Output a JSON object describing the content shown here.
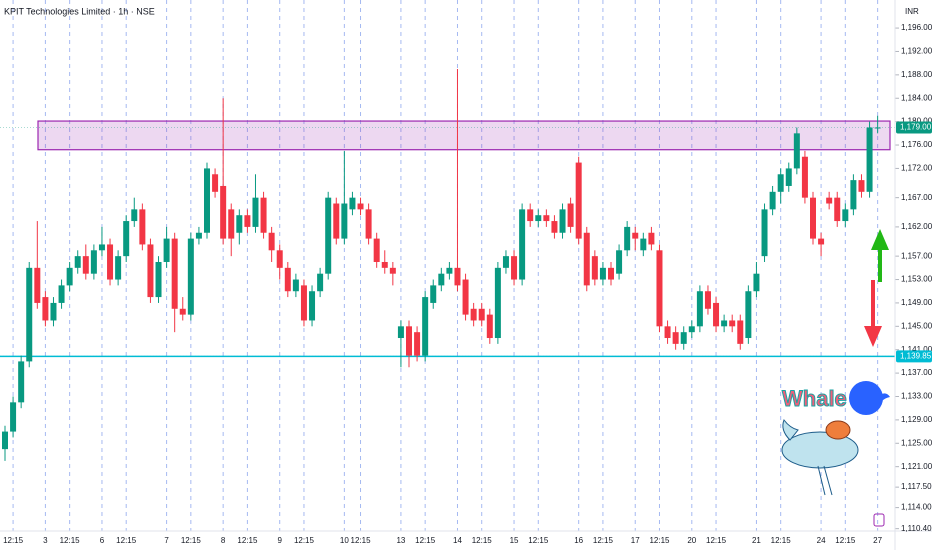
{
  "chart_data": {
    "type": "candlestick",
    "title": "KPIT Technologies Limited · 1h · NSE",
    "axis_unit": "INR",
    "up_color": "#089981",
    "down_color": "#f23645",
    "categories": [
      null,
      "12:15",
      null,
      null,
      null,
      "3",
      null,
      null,
      "12:15",
      null,
      null,
      null,
      "6",
      null,
      null,
      "12:15",
      null,
      null,
      null,
      null,
      "7",
      null,
      null,
      "12:15",
      null,
      null,
      null,
      "8",
      null,
      null,
      "12:15",
      null,
      null,
      null,
      "9",
      null,
      null,
      "12:15",
      null,
      null,
      null,
      null,
      "10",
      null,
      "12:15",
      null,
      null,
      null,
      null,
      "13",
      null,
      null,
      "12:15",
      null,
      null,
      null,
      "14",
      null,
      null,
      "12:15",
      null,
      null,
      null,
      "15",
      null,
      null,
      "12:15",
      null,
      null,
      null,
      null,
      "16",
      null,
      null,
      "12:15",
      null,
      null,
      null,
      "17",
      null,
      null,
      "12:15",
      null,
      null,
      null,
      "20",
      null,
      null,
      "12:15",
      null,
      null,
      null,
      null,
      "21",
      null,
      null,
      "12:15",
      null,
      null,
      null,
      null,
      "24",
      null,
      null,
      "12:15",
      null,
      null,
      null,
      "27"
    ],
    "ohlc": [
      [
        1124,
        1128,
        1122,
        1127
      ],
      [
        1127,
        1133,
        1126,
        1132
      ],
      [
        1132,
        1140,
        1131,
        1139
      ],
      [
        1139,
        1156,
        1138,
        1155
      ],
      [
        1155,
        1163,
        1148,
        1149
      ],
      [
        1150,
        1151,
        1145,
        1146
      ],
      [
        1146,
        1150,
        1145,
        1149
      ],
      [
        1149,
        1153,
        1148,
        1152
      ],
      [
        1152,
        1156,
        1151,
        1155
      ],
      [
        1155,
        1158,
        1154,
        1157
      ],
      [
        1157,
        1159,
        1153,
        1154
      ],
      [
        1154,
        1159,
        1153,
        1158
      ],
      [
        1158,
        1162,
        1157,
        1159
      ],
      [
        1159,
        1160,
        1152,
        1153
      ],
      [
        1153,
        1158,
        1152,
        1157
      ],
      [
        1157,
        1164,
        1156,
        1163
      ],
      [
        1163,
        1167,
        1162,
        1165
      ],
      [
        1165,
        1166,
        1158,
        1159
      ],
      [
        1159,
        1160,
        1149,
        1150
      ],
      [
        1150,
        1157,
        1149,
        1156
      ],
      [
        1156,
        1162,
        1155,
        1160
      ],
      [
        1160,
        1161,
        1144,
        1148
      ],
      [
        1148,
        1150,
        1146,
        1147
      ],
      [
        1147,
        1161,
        1146,
        1160
      ],
      [
        1160,
        1162,
        1159,
        1161
      ],
      [
        1161,
        1173,
        1160,
        1172
      ],
      [
        1171,
        1172,
        1167,
        1168
      ],
      [
        1169,
        1184,
        1159,
        1160
      ],
      [
        1165,
        1166,
        1157,
        1160
      ],
      [
        1161,
        1165,
        1159,
        1164
      ],
      [
        1164,
        1165,
        1161,
        1162
      ],
      [
        1162,
        1171,
        1161,
        1167
      ],
      [
        1167,
        1168,
        1160,
        1161
      ],
      [
        1161,
        1162,
        1156,
        1158
      ],
      [
        1158,
        1159,
        1153,
        1155
      ],
      [
        1155,
        1156,
        1150,
        1151
      ],
      [
        1151,
        1154,
        1150,
        1153
      ],
      [
        1152,
        1153,
        1145,
        1146
      ],
      [
        1146,
        1152,
        1145,
        1151
      ],
      [
        1151,
        1155,
        1150,
        1154
      ],
      [
        1154,
        1168,
        1153,
        1167
      ],
      [
        1166,
        1167,
        1159,
        1160
      ],
      [
        1160,
        1175,
        1159,
        1166
      ],
      [
        1165,
        1168,
        1164,
        1167
      ],
      [
        1166,
        1167,
        1164,
        1165
      ],
      [
        1165,
        1166,
        1159,
        1160
      ],
      [
        1160,
        1161,
        1155,
        1156
      ],
      [
        1156,
        1158,
        1154,
        1155
      ],
      [
        1155,
        1156,
        1152,
        1154
      ],
      [
        1143,
        1146,
        1138,
        1145
      ],
      [
        1145,
        1146,
        1138,
        1140
      ],
      [
        1144,
        1145,
        1139,
        1140
      ],
      [
        1140,
        1151,
        1139,
        1150
      ],
      [
        1149,
        1153,
        1148,
        1152
      ],
      [
        1152,
        1155,
        1151,
        1154
      ],
      [
        1154,
        1156,
        1153,
        1155
      ],
      [
        1155,
        1189,
        1151,
        1152
      ],
      [
        1153,
        1154,
        1146,
        1147
      ],
      [
        1148,
        1149,
        1145,
        1146
      ],
      [
        1148,
        1149,
        1145,
        1146
      ],
      [
        1147,
        1148,
        1142,
        1143
      ],
      [
        1143,
        1156,
        1142,
        1155
      ],
      [
        1155,
        1158,
        1154,
        1157
      ],
      [
        1157,
        1158,
        1152,
        1153
      ],
      [
        1153,
        1166,
        1152,
        1165
      ],
      [
        1165,
        1166,
        1162,
        1163
      ],
      [
        1163,
        1165,
        1162,
        1164
      ],
      [
        1164,
        1165,
        1162,
        1163
      ],
      [
        1163,
        1164,
        1160,
        1161
      ],
      [
        1161,
        1166,
        1160,
        1165
      ],
      [
        1166,
        1167,
        1161,
        1162
      ],
      [
        1173,
        1174,
        1159,
        1160
      ],
      [
        1161,
        1162,
        1151,
        1152
      ],
      [
        1157,
        1158,
        1152,
        1153
      ],
      [
        1153,
        1156,
        1152,
        1155
      ],
      [
        1155,
        1156,
        1152,
        1153
      ],
      [
        1154,
        1159,
        1153,
        1158
      ],
      [
        1158,
        1163,
        1157,
        1162
      ],
      [
        1161,
        1162,
        1158,
        1160
      ],
      [
        1158,
        1161,
        1157,
        1160
      ],
      [
        1161,
        1162,
        1158,
        1159
      ],
      [
        1158,
        1159,
        1144,
        1145
      ],
      [
        1145,
        1146,
        1142,
        1143
      ],
      [
        1144,
        1145,
        1141,
        1142
      ],
      [
        1142,
        1145,
        1141,
        1144
      ],
      [
        1144,
        1146,
        1143,
        1145
      ],
      [
        1145,
        1152,
        1144,
        1151
      ],
      [
        1151,
        1152,
        1147,
        1148
      ],
      [
        1149,
        1150,
        1144,
        1145
      ],
      [
        1145,
        1147,
        1144,
        1146
      ],
      [
        1146,
        1147,
        1144,
        1145
      ],
      [
        1146,
        1147,
        1141,
        1142
      ],
      [
        1143,
        1152,
        1142,
        1151
      ],
      [
        1151,
        1156,
        1150,
        1154
      ],
      [
        1157,
        1166,
        1156,
        1165
      ],
      [
        1165,
        1169,
        1164,
        1168
      ],
      [
        1168,
        1172,
        1166,
        1171
      ],
      [
        1169,
        1173,
        1168,
        1172
      ],
      [
        1172,
        1179,
        1171,
        1178
      ],
      [
        1174,
        1175,
        1166,
        1167
      ],
      [
        1167,
        1168,
        1159,
        1160
      ],
      [
        1160,
        1161,
        1157,
        1159
      ],
      [
        1167,
        1168,
        1165,
        1166
      ],
      [
        1167,
        1168,
        1162,
        1163
      ],
      [
        1163,
        1166,
        1162,
        1165
      ],
      [
        1165,
        1171,
        1164,
        1170
      ],
      [
        1170,
        1171,
        1167,
        1168
      ],
      [
        1168,
        1180,
        1167,
        1179
      ],
      [
        1179,
        1181,
        1178,
        1179
      ]
    ],
    "ylim": [
      1110.0,
      1200.8
    ],
    "yticks": [
      {
        "value": 1196,
        "label": "1,196.00"
      },
      {
        "value": 1192,
        "label": "1,192.00"
      },
      {
        "value": 1188,
        "label": "1,188.00"
      },
      {
        "value": 1184,
        "label": "1,184.00"
      },
      {
        "value": 1180,
        "label": "1,180.00"
      },
      {
        "value": 1176,
        "label": "1,176.00"
      },
      {
        "value": 1172,
        "label": "1,172.00"
      },
      {
        "value": 1167,
        "label": "1,167.00"
      },
      {
        "value": 1162,
        "label": "1,162.00"
      },
      {
        "value": 1157,
        "label": "1,157.00"
      },
      {
        "value": 1153,
        "label": "1,153.00"
      },
      {
        "value": 1149,
        "label": "1,149.00"
      },
      {
        "value": 1145,
        "label": "1,145.00"
      },
      {
        "value": 1141,
        "label": "1,141.00"
      },
      {
        "value": 1137,
        "label": "1,137.00"
      },
      {
        "value": 1133,
        "label": "1,133.00"
      },
      {
        "value": 1129,
        "label": "1,129.00"
      },
      {
        "value": 1125,
        "label": "1,125.00"
      },
      {
        "value": 1121,
        "label": "1,121.00"
      },
      {
        "value": 1117.5,
        "label": "1,117.50"
      },
      {
        "value": 1114,
        "label": "1,114.00"
      },
      {
        "value": 1110.4,
        "label": "1,110.40"
      }
    ],
    "zone": {
      "top": 1180.1,
      "bottom": 1175.2,
      "color": "#9c27b0"
    },
    "price_labels": [
      {
        "value": 1179,
        "label": "1,179.00",
        "color": "#089981"
      },
      {
        "value": 1139.85,
        "label": "1,139.85",
        "color": "#00bcd4"
      }
    ],
    "support_line": {
      "value": 1139.85,
      "color": "#00bcd4"
    },
    "logo_text": "Whale"
  }
}
